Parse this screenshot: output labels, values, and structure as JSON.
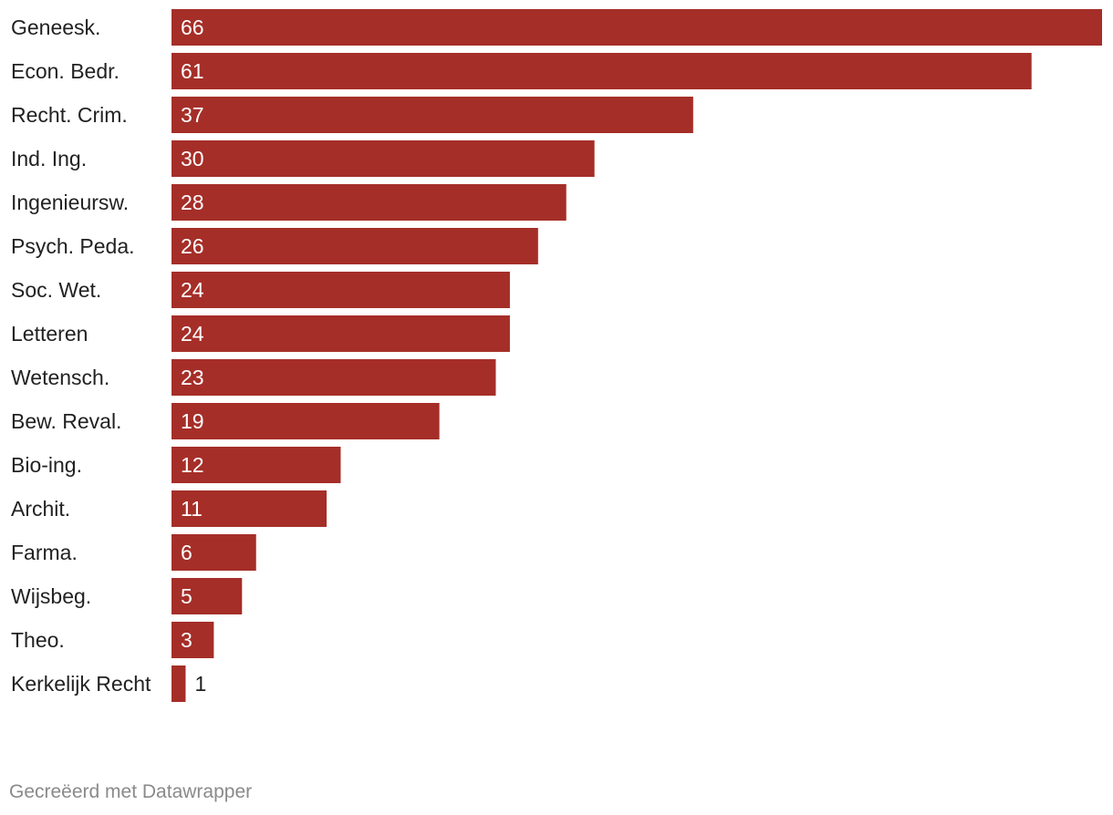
{
  "chart_data": {
    "type": "bar",
    "orientation": "horizontal",
    "title": "",
    "xlabel": "",
    "ylabel": "",
    "xlim": [
      0,
      66
    ],
    "grid": false,
    "categories": [
      "Geneesk.",
      "Econ. Bedr.",
      "Recht. Crim.",
      "Ind. Ing.",
      "Ingenieursw.",
      "Psych. Peda.",
      "Soc. Wet.",
      "Letteren",
      "Wetensch.",
      "Bew. Reval.",
      "Bio-ing.",
      "Archit.",
      "Farma.",
      "Wijsbeg.",
      "Theo.",
      "Kerkelijk Recht"
    ],
    "values": [
      66,
      61,
      37,
      30,
      28,
      26,
      24,
      24,
      23,
      19,
      12,
      11,
      6,
      5,
      3,
      1
    ],
    "colors": {
      "bar": "#a52e28",
      "label_inside": "#ffffff",
      "label_outside": "#222222"
    }
  },
  "footer": {
    "credit": "Gecreëerd met Datawrapper"
  }
}
